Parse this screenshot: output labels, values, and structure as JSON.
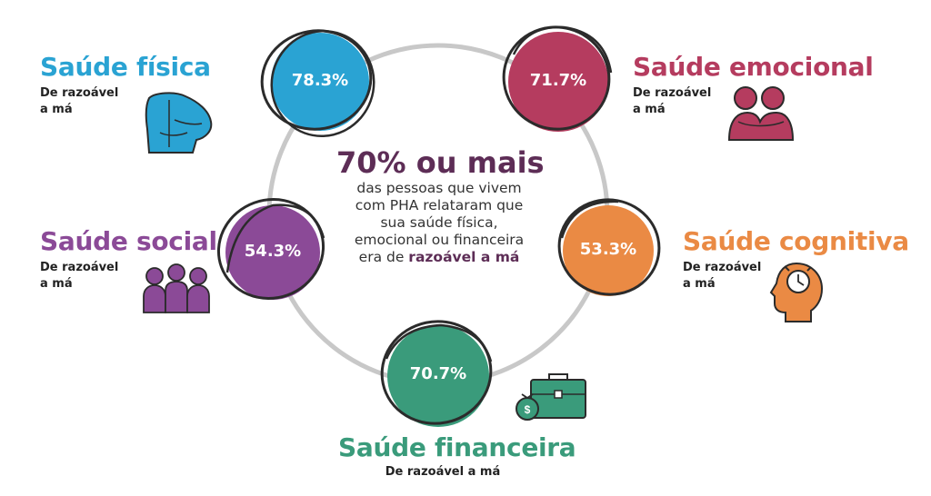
{
  "center": {
    "headline": "70% ou mais",
    "body_lines": [
      "das pessoas que vivem",
      "com PHA relataram que",
      "sua saúde física,",
      "emocional ou financeira"
    ],
    "last_line_prefix": "era de ",
    "last_line_highlight": "razoável a má"
  },
  "categories": {
    "fisica": {
      "title": "Saúde física",
      "sub_line1": "De razoável",
      "sub_line2": "a má",
      "value": "78.3%",
      "color": "#2aa3d3"
    },
    "emocional": {
      "title": "Saúde emocional",
      "sub_line1": "De razoável",
      "sub_line2": "a má",
      "value": "71.7%",
      "color": "#b53c5f"
    },
    "social": {
      "title": "Saúde social",
      "sub_line1": "De razoável",
      "sub_line2": "a má",
      "value": "54.3%",
      "color": "#8b4a97"
    },
    "cognitiva": {
      "title": "Saúde cognitiva",
      "sub_line1": "De razoável",
      "sub_line2": "a má",
      "value": "53.3%",
      "color": "#ea8a44"
    },
    "financeira": {
      "title": "Saúde financeira",
      "sub": "De razoável a má",
      "value": "70.7%",
      "color": "#3a9b7b"
    }
  },
  "icons": {
    "fisica": "back-pain-icon",
    "emocional": "hugging-people-icon",
    "social": "group-of-people-icon",
    "cognitiva": "head-with-clock-icon",
    "financeira": "briefcase-money-icon"
  }
}
